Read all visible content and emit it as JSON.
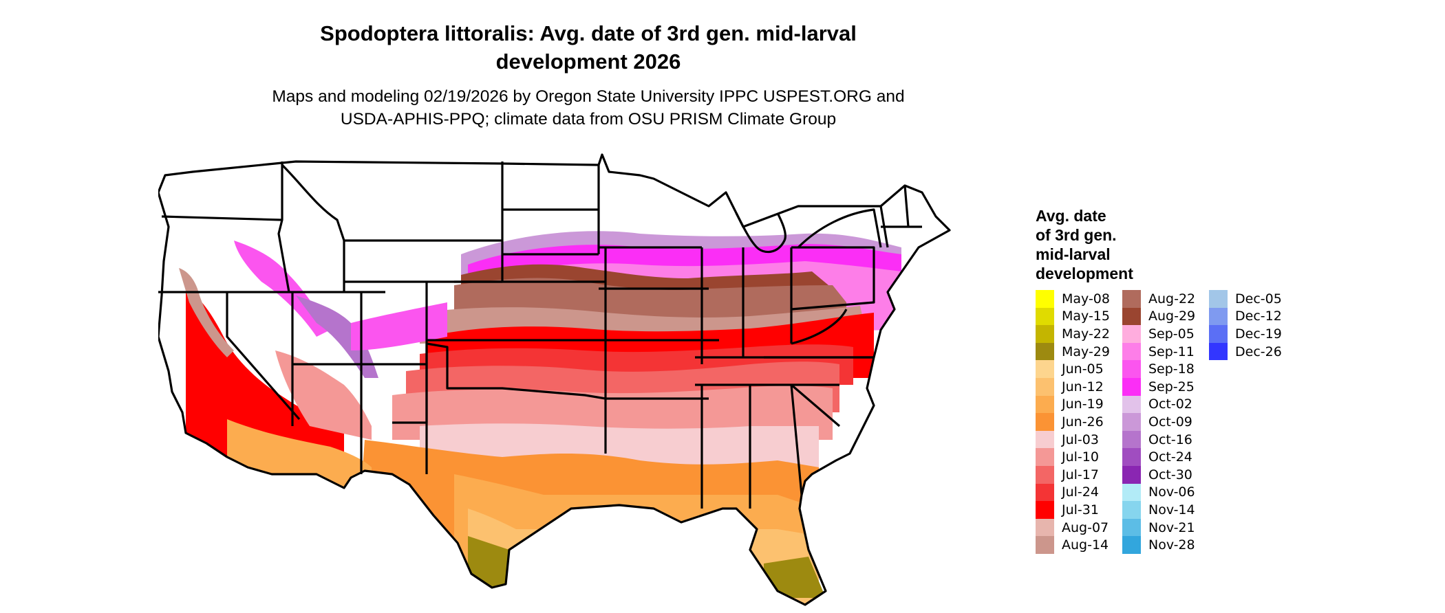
{
  "title_line1": "Spodoptera littoralis: Avg. date of 3rd gen. mid-larval",
  "title_line2": "development 2026",
  "subtitle_line1": "Maps and modeling 02/19/2026 by Oregon State University IPPC USPEST.ORG and",
  "subtitle_line2": "USDA-APHIS-PPQ; climate data from OSU PRISM Climate Group",
  "legend": {
    "title_lines": [
      "Avg. date",
      "of 3rd gen.",
      "mid-larval",
      "development"
    ],
    "columns": [
      [
        {
          "label": "May-08",
          "color": "#ffff00"
        },
        {
          "label": "May-15",
          "color": "#e0db00"
        },
        {
          "label": "May-22",
          "color": "#c4b500"
        },
        {
          "label": "May-29",
          "color": "#9d8a10"
        },
        {
          "label": "Jun-05",
          "color": "#fdd58e"
        },
        {
          "label": "Jun-12",
          "color": "#fcc16f"
        },
        {
          "label": "Jun-19",
          "color": "#fcac4f"
        },
        {
          "label": "Jun-26",
          "color": "#fb9334"
        },
        {
          "label": "Jul-03",
          "color": "#f7cdd0"
        },
        {
          "label": "Jul-10",
          "color": "#f49896"
        },
        {
          "label": "Jul-17",
          "color": "#f36665"
        },
        {
          "label": "Jul-24",
          "color": "#f43435"
        },
        {
          "label": "Jul-31",
          "color": "#ff0000"
        },
        {
          "label": "Aug-07",
          "color": "#e7b5ad"
        },
        {
          "label": "Aug-14",
          "color": "#cc968c"
        }
      ],
      [
        {
          "label": "Aug-22",
          "color": "#b06b5d"
        },
        {
          "label": "Aug-29",
          "color": "#9a4530"
        },
        {
          "label": "Sep-05",
          "color": "#ffadde"
        },
        {
          "label": "Sep-11",
          "color": "#fd7ee8"
        },
        {
          "label": "Sep-18",
          "color": "#fb55ef"
        },
        {
          "label": "Sep-25",
          "color": "#fb2ef6"
        },
        {
          "label": "Oct-02",
          "color": "#e2c2ea"
        },
        {
          "label": "Oct-09",
          "color": "#cb98d8"
        },
        {
          "label": "Oct-16",
          "color": "#b574cc"
        },
        {
          "label": "Oct-24",
          "color": "#a04dc0"
        },
        {
          "label": "Oct-30",
          "color": "#8a26b2"
        },
        {
          "label": "Nov-06",
          "color": "#b2ebf7"
        },
        {
          "label": "Nov-14",
          "color": "#86d5ee"
        },
        {
          "label": "Nov-21",
          "color": "#5cbde6"
        },
        {
          "label": "Nov-28",
          "color": "#32a6dd"
        }
      ],
      [
        {
          "label": "Dec-05",
          "color": "#a2c6e8"
        },
        {
          "label": "Dec-12",
          "color": "#7f9af0"
        },
        {
          "label": "Dec-19",
          "color": "#5b6ff5"
        },
        {
          "label": "Dec-26",
          "color": "#3236ff"
        }
      ]
    ]
  }
}
